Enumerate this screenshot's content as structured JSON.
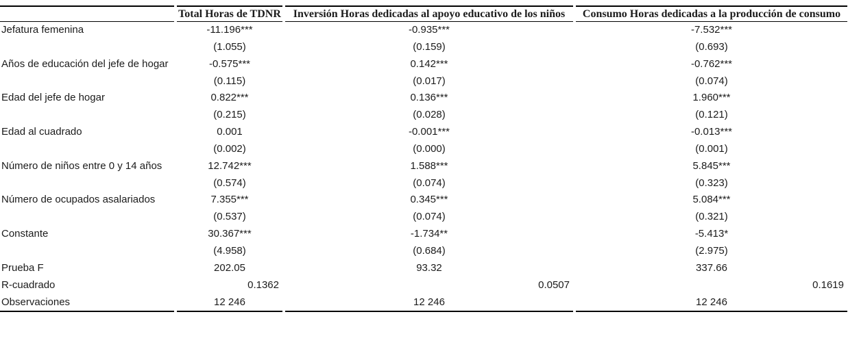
{
  "table": {
    "header": {
      "row_label_column": "",
      "columns": [
        "Total Horas de TDNR",
        "Inversión Horas dedicadas al apoyo educativo de los niños",
        "Consumo Horas dedicadas a la producción de consumo"
      ]
    },
    "rows": [
      {
        "label": "Jefatura femenina",
        "values": [
          "-11.196***",
          "-0.935***",
          "-7.532***"
        ]
      },
      {
        "label": "",
        "values": [
          "(1.055)",
          "(0.159)",
          "(0.693)"
        ]
      },
      {
        "label": "Años de educación del jefe de hogar",
        "values": [
          "-0.575***",
          "0.142***",
          "-0.762***"
        ]
      },
      {
        "label": "",
        "values": [
          "(0.115)",
          "(0.017)",
          "(0.074)"
        ]
      },
      {
        "label": "Edad del jefe de hogar",
        "values": [
          "0.822***",
          "0.136***",
          "1.960***"
        ]
      },
      {
        "label": "",
        "values": [
          "(0.215)",
          "(0.028)",
          "(0.121)"
        ]
      },
      {
        "label": "Edad al cuadrado",
        "values": [
          "0.001",
          "-0.001***",
          "-0.013***"
        ]
      },
      {
        "label": "",
        "values": [
          "(0.002)",
          "(0.000)",
          "(0.001)"
        ]
      },
      {
        "label": "Número de niños entre 0 y 14 años",
        "values": [
          "12.742***",
          "1.588***",
          "5.845***"
        ]
      },
      {
        "label": "",
        "values": [
          "(0.574)",
          "(0.074)",
          "(0.323)"
        ]
      },
      {
        "label": "Número de ocupados asalariados",
        "values": [
          "7.355***",
          "0.345***",
          "5.084***"
        ]
      },
      {
        "label": "",
        "values": [
          "(0.537)",
          "(0.074)",
          "(0.321)"
        ]
      },
      {
        "label": "Constante",
        "values": [
          "30.367***",
          "-1.734**",
          "-5.413*"
        ]
      },
      {
        "label": "",
        "values": [
          "(4.958)",
          "(0.684)",
          "(2.975)"
        ]
      },
      {
        "label": "Prueba F",
        "values": [
          "202.05",
          "93.32",
          "337.66"
        ]
      },
      {
        "label": "R-cuadrado",
        "values": [
          "0.1362",
          "0.0507",
          "0.1619"
        ],
        "align": "right"
      },
      {
        "label": "Observaciones",
        "values": [
          "12 246",
          "12 246",
          "12 246"
        ]
      }
    ]
  },
  "colors": {
    "background": "#ffffff",
    "text": "#1b1b1b",
    "rule": "#000000"
  }
}
